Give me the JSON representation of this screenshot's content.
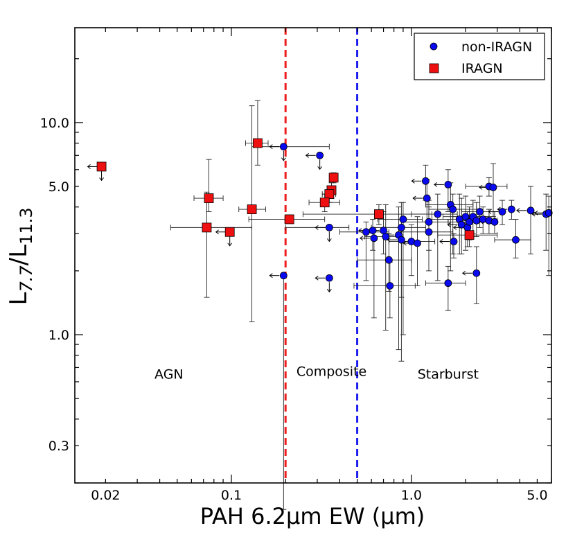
{
  "chart_data": {
    "type": "scatter",
    "title": "",
    "xlabel": "PAH 6.2μm EW (μm)",
    "ylabel_main": "L",
    "ylabel_sub1": "7.7",
    "ylabel_sep": "/L",
    "ylabel_sub2": "11.3",
    "xscale": "log",
    "yscale": "log",
    "xlim": [
      0.0135,
      6.0
    ],
    "ylim": [
      0.2,
      28
    ],
    "x_ticks": [
      {
        "v": 0.02,
        "label": "0.02"
      },
      {
        "v": 0.1,
        "label": "0.1"
      },
      {
        "v": 1.0,
        "label": "1.0"
      },
      {
        "v": 5.0,
        "label": "5.0"
      }
    ],
    "y_ticks": [
      {
        "v": 0.3,
        "label": "0.3"
      },
      {
        "v": 1.0,
        "label": "1.0"
      },
      {
        "v": 5.0,
        "label": "5.0"
      },
      {
        "v": 10.0,
        "label": "10.0"
      }
    ],
    "vlines": [
      {
        "x": 0.2,
        "color": "#ee1c1c",
        "style": "dashed"
      },
      {
        "x": 0.5,
        "color": "#1c1cee",
        "style": "dashed"
      }
    ],
    "regions": [
      {
        "label": "AGN",
        "x": 0.045,
        "y": 0.62
      },
      {
        "label": "Composite",
        "x": 0.36,
        "y": 0.64
      },
      {
        "label": "Starburst",
        "x": 1.6,
        "y": 0.62
      }
    ],
    "legend": {
      "position": "top-right",
      "entries": [
        {
          "label": "non-IRAGN",
          "marker": "circle",
          "color": "#0a0aee"
        },
        {
          "label": "IRAGN",
          "marker": "square",
          "color": "#ee1010"
        }
      ]
    },
    "series": [
      {
        "name": "IRAGN",
        "marker": "square",
        "color": "#ee1010",
        "points": [
          {
            "x": 0.019,
            "y": 6.2,
            "xl": "upper",
            "yl": "upper"
          },
          {
            "x": 0.14,
            "y": 8.0,
            "xerr": [
              0.12,
              0.16
            ],
            "yerr": [
              6.3,
              12.7
            ]
          },
          {
            "x": 0.075,
            "y": 4.4,
            "xerr": [
              0.062,
              0.09
            ],
            "yerr": [
              3.8,
              6.7
            ]
          },
          {
            "x": 0.073,
            "y": 3.2,
            "xerr": [
              0.046,
              0.13
            ],
            "yerr": [
              1.5,
              4.7
            ]
          },
          {
            "x": 0.098,
            "y": 3.05,
            "xl": "upper",
            "yl": "upper"
          },
          {
            "x": 0.13,
            "y": 3.9,
            "xerr": [
              0.11,
              0.155
            ],
            "yerr": [
              1.15,
              12.0
            ]
          },
          {
            "x": 0.21,
            "y": 3.5,
            "xerr": [
              0.125,
              0.33
            ],
            "yerr": [
              3.45,
              3.55
            ]
          },
          {
            "x": 0.37,
            "y": 5.5,
            "xerr": [
              0.355,
              0.385
            ],
            "yerr": [
              5.2,
              5.8
            ]
          },
          {
            "x": 0.36,
            "y": 4.8,
            "xerr": [
              0.34,
              0.38
            ],
            "yerr": [
              4.4,
              5.2
            ]
          },
          {
            "x": 0.35,
            "y": 4.6,
            "xerr": [
              0.32,
              0.38
            ],
            "yerr": [
              4.2,
              5.0
            ]
          },
          {
            "x": 0.33,
            "y": 4.2,
            "xerr": [
              0.27,
              0.4
            ],
            "yerr": [
              3.8,
              4.6
            ]
          },
          {
            "x": 0.66,
            "y": 3.7,
            "xerr": [
              0.25,
              1.3
            ],
            "yerr": [
              3.3,
              4.1
            ]
          },
          {
            "x": 2.1,
            "y": 2.95,
            "xerr": [
              1.4,
              3.0
            ],
            "yerr": [
              2.6,
              3.3
            ]
          }
        ]
      },
      {
        "name": "non-IRAGN",
        "marker": "circle",
        "color": "#0a0aee",
        "points": [
          {
            "x": 0.195,
            "y": 7.7,
            "xl": "upper",
            "yl": "upper",
            "xerr": [
              0.13,
              0.35
            ]
          },
          {
            "x": 0.195,
            "y": 1.9,
            "xl": "upper",
            "yerr": [
              0.15,
              1.9
            ]
          },
          {
            "x": 0.31,
            "y": 7.0,
            "xl": "upper",
            "yl": "upper"
          },
          {
            "x": 0.35,
            "y": 1.85,
            "xl": "upper",
            "yl": "upper"
          },
          {
            "x": 0.35,
            "y": 3.2,
            "xl": "upper",
            "yl": "upper",
            "xerr": [
              0.2,
              0.45
            ]
          },
          {
            "x": 0.56,
            "y": 3.05,
            "xerr": [
              0.4,
              0.75
            ],
            "yerr": [
              1.8,
              3.4
            ]
          },
          {
            "x": 0.61,
            "y": 3.1,
            "xl": "upper",
            "yerr": [
              2.5,
              3.5
            ]
          },
          {
            "x": 0.62,
            "y": 2.85,
            "xl": "upper",
            "yerr": [
              1.2,
              3.2
            ]
          },
          {
            "x": 0.7,
            "y": 3.1,
            "xl": "upper",
            "yerr": [
              2.4,
              3.8
            ]
          },
          {
            "x": 0.75,
            "y": 2.25,
            "xerr": [
              0.5,
              1.0
            ],
            "yerr": [
              1.6,
              3.0
            ]
          },
          {
            "x": 0.76,
            "y": 1.7,
            "xerr": [
              0.48,
              1.05
            ],
            "yerr": [
              1.2,
              2.2
            ]
          },
          {
            "x": 0.72,
            "y": 2.9,
            "xerr": [
              0.55,
              0.9
            ],
            "yerr": [
              1.05,
              4.1
            ]
          },
          {
            "x": 0.9,
            "y": 3.5,
            "xerr": [
              0.65,
              1.15
            ],
            "yerr": [
              1.0,
              4.2
            ]
          },
          {
            "x": 0.88,
            "y": 3.2,
            "xerr": [
              0.6,
              1.2
            ],
            "yerr": [
              0.75,
              4.2
            ]
          },
          {
            "x": 0.85,
            "y": 2.95,
            "xl": "upper",
            "yerr": [
              0.85,
              4.0
            ]
          },
          {
            "x": 0.88,
            "y": 2.8,
            "xl": "upper",
            "yerr": [
              1.5,
              3.5
            ]
          },
          {
            "x": 1.0,
            "y": 2.75,
            "xerr": [
              0.75,
              1.35
            ],
            "yerr": [
              1.9,
              3.3
            ]
          },
          {
            "x": 1.08,
            "y": 2.7,
            "xl": "upper",
            "yerr": [
              1.7,
              3.6
            ]
          },
          {
            "x": 1.2,
            "y": 5.3,
            "xl": "upper",
            "yerr": [
              4.3,
              6.3
            ]
          },
          {
            "x": 1.22,
            "y": 4.4,
            "xl": "upper",
            "yerr": [
              3.4,
              5.4
            ]
          },
          {
            "x": 1.25,
            "y": 3.4,
            "xerr": [
              0.9,
              1.6
            ],
            "yerr": [
              2.5,
              4.3
            ]
          },
          {
            "x": 1.25,
            "y": 3.05,
            "xerr": [
              0.85,
              1.7
            ],
            "yerr": [
              2.0,
              4.0
            ]
          },
          {
            "x": 1.4,
            "y": 3.7,
            "xerr": [
              1.0,
              1.8
            ],
            "yerr": [
              1.8,
              4.6
            ]
          },
          {
            "x": 1.6,
            "y": 5.1,
            "xl": "upper",
            "yerr": [
              3.8,
              6.0
            ]
          },
          {
            "x": 1.65,
            "y": 4.1,
            "xerr": [
              1.2,
              2.2
            ],
            "yerr": [
              2.0,
              5.2
            ]
          },
          {
            "x": 1.6,
            "y": 1.75,
            "xerr": [
              1.2,
              2.0
            ],
            "yerr": [
              1.3,
              2.1
            ]
          },
          {
            "x": 1.7,
            "y": 3.9,
            "xerr": [
              1.25,
              2.3
            ],
            "yerr": [
              2.4,
              4.6
            ]
          },
          {
            "x": 1.72,
            "y": 2.75,
            "xl": "upper",
            "yerr": [
              2.3,
              3.0
            ]
          },
          {
            "x": 1.85,
            "y": 3.5,
            "xerr": [
              1.3,
              2.5
            ],
            "yerr": [
              2.4,
              4.6
            ]
          },
          {
            "x": 1.9,
            "y": 3.3,
            "xl": "upper",
            "yerr": [
              2.4,
              4.4
            ]
          },
          {
            "x": 2.0,
            "y": 3.6,
            "xerr": [
              1.5,
              2.7
            ],
            "yerr": [
              2.5,
              4.5
            ]
          },
          {
            "x": 2.05,
            "y": 3.2,
            "xl": "upper",
            "yerr": [
              2.6,
              3.8
            ]
          },
          {
            "x": 2.1,
            "y": 3.4,
            "xerr": [
              1.6,
              2.9
            ],
            "yerr": [
              2.8,
              4.0
            ]
          },
          {
            "x": 2.2,
            "y": 3.6,
            "xerr": [
              1.7,
              2.9
            ],
            "yerr": [
              3.0,
              4.3
            ]
          },
          {
            "x": 2.3,
            "y": 3.45,
            "xerr": [
              1.8,
              3.0
            ],
            "yerr": [
              2.9,
              4.2
            ]
          },
          {
            "x": 2.4,
            "y": 3.8,
            "xerr": [
              1.9,
              3.1
            ],
            "yerr": [
              3.2,
              4.5
            ]
          },
          {
            "x": 2.3,
            "y": 1.95,
            "xl": "upper",
            "yerr": [
              1.4,
              2.6
            ]
          },
          {
            "x": 2.5,
            "y": 3.5,
            "xl": "upper",
            "yerr": [
              3.0,
              4.0
            ]
          },
          {
            "x": 2.7,
            "y": 3.45,
            "xl": "upper",
            "yerr": [
              3.0,
              3.9
            ]
          },
          {
            "x": 2.9,
            "y": 3.4,
            "xl": "upper",
            "yerr": [
              3.0,
              3.8
            ]
          },
          {
            "x": 2.7,
            "y": 5.0,
            "xerr": [
              2.0,
              3.4
            ],
            "yerr": [
              4.5,
              5.5
            ]
          },
          {
            "x": 2.85,
            "y": 4.95,
            "xl": "upper",
            "yerr": [
              3.6,
              6.4
            ]
          },
          {
            "x": 3.2,
            "y": 3.8,
            "xl": "upper",
            "yerr": [
              3.3,
              4.3
            ]
          },
          {
            "x": 3.6,
            "y": 3.9,
            "xl": "upper",
            "yerr": [
              3.5,
              4.3
            ]
          },
          {
            "x": 3.8,
            "y": 2.8,
            "xerr": [
              2.9,
              4.6
            ],
            "yerr": [
              2.3,
              3.5
            ]
          },
          {
            "x": 4.6,
            "y": 3.85,
            "xl": "upper",
            "yerr": [
              2.4,
              5.0
            ]
          },
          {
            "x": 5.6,
            "y": 3.7,
            "xl": "upper",
            "yerr": [
              2.5,
              4.6
            ]
          },
          {
            "x": 5.8,
            "y": 3.75,
            "xl": "upper",
            "yerr": [
              1.9,
              4.5
            ]
          }
        ]
      }
    ]
  }
}
